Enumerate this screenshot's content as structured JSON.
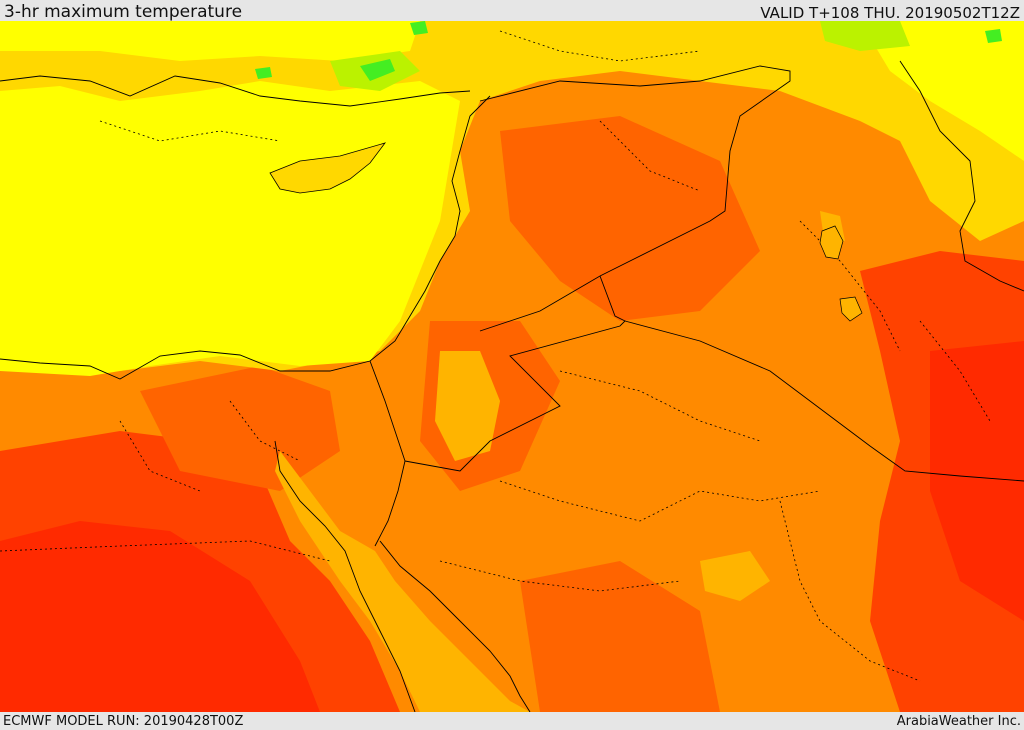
{
  "header": {
    "title": "3-hr maximum temperature",
    "valid_time": "VALID T+108 THU. 20190502T12Z"
  },
  "footer": {
    "model_run": "ECMWF MODEL RUN: 20190428T00Z",
    "provider": "ArabiaWeather Inc."
  },
  "palette": {
    "green": "#44ee22",
    "yellow_green": "#bbf200",
    "yellow": "#ffff00",
    "gold": "#ffd800",
    "light_orange": "#ffb400",
    "orange": "#ff8a00",
    "dark_orange": "#ff6400",
    "red_orange": "#ff4200",
    "red": "#ff2a00"
  }
}
